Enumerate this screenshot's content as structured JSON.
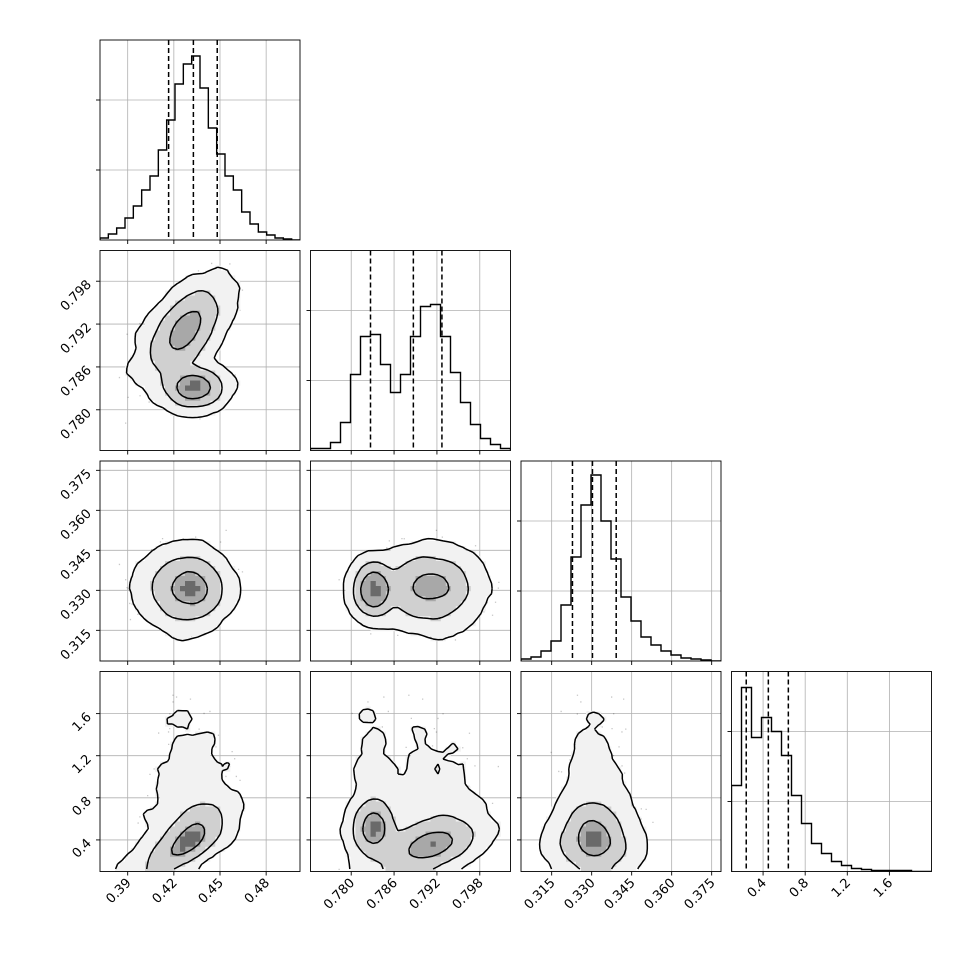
{
  "chart_data": {
    "type": "corner",
    "grid": true,
    "parameters": [
      {
        "range": [
          0.372,
          0.502
        ],
        "ticks": [
          0.39,
          0.42,
          0.45,
          0.48
        ],
        "tick_labels": [
          "0.39",
          "0.42",
          "0.45",
          "0.48"
        ],
        "quantiles": [
          0.4166,
          0.4327,
          0.4482
        ],
        "hist_ticks": [
          0.35,
          0.7
        ],
        "hist_ymax": 1.0,
        "hist_counts": [
          0.01,
          0.03,
          0.06,
          0.11,
          0.17,
          0.25,
          0.32,
          0.45,
          0.6,
          0.78,
          0.88,
          0.92,
          0.76,
          0.56,
          0.43,
          0.32,
          0.25,
          0.14,
          0.08,
          0.04,
          0.025,
          0.01,
          0.005,
          0
        ]
      },
      {
        "range": [
          0.7743,
          0.8023
        ],
        "ticks": [
          0.78,
          0.786,
          0.792,
          0.798
        ],
        "tick_labels": [
          "0.780",
          "0.786",
          "0.792",
          "0.798"
        ],
        "quantiles": [
          0.7827,
          0.7887,
          0.7927
        ],
        "hist_ticks": [
          0.35,
          0.7
        ],
        "hist_ymax": 1.0,
        "hist_counts": [
          0.01,
          0.01,
          0.04,
          0.14,
          0.38,
          0.57,
          0.58,
          0.43,
          0.29,
          0.38,
          0.57,
          0.72,
          0.73,
          0.57,
          0.39,
          0.24,
          0.13,
          0.06,
          0.03,
          0.01
        ]
      },
      {
        "range": [
          0.3035,
          0.3785
        ],
        "ticks": [
          0.315,
          0.33,
          0.345,
          0.36,
          0.375
        ],
        "tick_labels": [
          "0.315",
          "0.330",
          "0.345",
          "0.360",
          "0.375"
        ],
        "quantiles": [
          0.3228,
          0.3303,
          0.3392
        ],
        "hist_ticks": [
          0.35,
          0.7
        ],
        "hist_ymax": 1.0,
        "hist_counts": [
          0.01,
          0.02,
          0.05,
          0.1,
          0.28,
          0.52,
          0.78,
          0.93,
          0.7,
          0.51,
          0.32,
          0.2,
          0.12,
          0.08,
          0.05,
          0.03,
          0.015,
          0.01,
          0.005,
          0
        ]
      },
      {
        "range": [
          0.1,
          2.0
        ],
        "ticks": [
          0.4,
          0.8,
          1.2,
          1.6
        ],
        "tick_labels": [
          "0.4",
          "0.8",
          "1.2",
          "1.6"
        ],
        "quantiles": [
          0.24,
          0.45,
          0.64
        ],
        "hist_ticks": [
          0.35,
          0.7
        ],
        "hist_ymax": 1.0,
        "hist_counts": [
          0.43,
          0.92,
          0.67,
          0.77,
          0.7,
          0.58,
          0.38,
          0.24,
          0.14,
          0.09,
          0.05,
          0.03,
          0.015,
          0.01,
          0.005,
          0.005,
          0.005,
          0.005,
          0,
          0
        ]
      }
    ],
    "scatter_density": "high",
    "contour_levels": 3
  }
}
